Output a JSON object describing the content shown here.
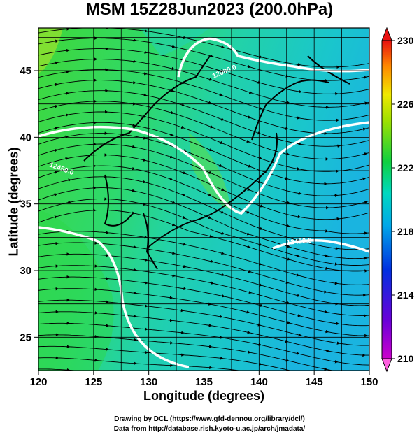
{
  "title": "MSM 15Z28Jun2023 (200.0hPa)",
  "xaxis": {
    "label": "Longitude (degrees)",
    "ticks": [
      "120",
      "125",
      "130",
      "135",
      "140",
      "145",
      "150"
    ]
  },
  "yaxis": {
    "label": "Latitude  (degrees)",
    "ticks": [
      "25",
      "30",
      "35",
      "40",
      "45"
    ]
  },
  "colorbar": {
    "ticks": [
      "230",
      "226",
      "222",
      "218",
      "214",
      "210"
    ],
    "min": 210,
    "max": 230
  },
  "contour_labels": [
    "12000.0",
    "12450.0",
    "12420.0"
  ],
  "credits": [
    "Drawing by DCL (https://www.gfd-dennou.org/library/dcl/)",
    "Data from http://database.rish.kyoto-u.ac.jp/arch/jmadata/"
  ]
}
